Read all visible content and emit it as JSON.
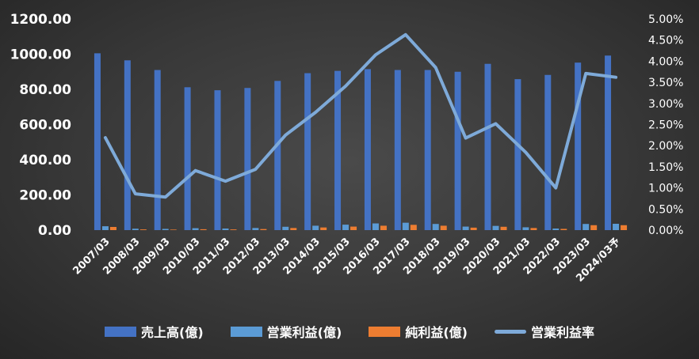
{
  "chart_data": {
    "type": "bar",
    "categories": [
      "2007/03",
      "2008/03",
      "2009/03",
      "2010/03",
      "2011/03",
      "2012/03",
      "2013/03",
      "2014/03",
      "2015/03",
      "2016/03",
      "2017/03",
      "2018/03",
      "2019/03",
      "2020/03",
      "2021/03",
      "2022/03",
      "2023/03",
      "2024/03予"
    ],
    "series": [
      {
        "name": "売上高(億)",
        "type": "bar",
        "axis": "left",
        "color": "#4472c4",
        "values": [
          1005,
          965,
          910,
          812,
          795,
          808,
          848,
          892,
          905,
          915,
          910,
          910,
          900,
          945,
          858,
          882,
          952,
          992
        ]
      },
      {
        "name": "営業利益(億)",
        "type": "bar",
        "axis": "left",
        "color": "#5b9bd5",
        "values": [
          22,
          8,
          7,
          11,
          9,
          12,
          19,
          25,
          31,
          38,
          42,
          35,
          20,
          24,
          16,
          9,
          35,
          36
        ]
      },
      {
        "name": "純利益(億)",
        "type": "bar",
        "axis": "left",
        "color": "#ed7d31",
        "values": [
          18,
          4,
          3,
          5,
          4,
          6,
          12,
          15,
          20,
          25,
          30,
          25,
          14,
          19,
          12,
          7,
          28,
          28
        ]
      },
      {
        "name": "営業利益率",
        "type": "line",
        "axis": "right",
        "color": "#7eaad9",
        "values": [
          2.19,
          0.86,
          0.78,
          1.41,
          1.16,
          1.44,
          2.25,
          2.79,
          3.41,
          4.15,
          4.63,
          3.85,
          2.18,
          2.52,
          1.84,
          1.0,
          3.71,
          3.62
        ]
      }
    ],
    "y_left": {
      "ylim": [
        0,
        1200
      ],
      "ticks": [
        "0.00",
        "200.00",
        "400.00",
        "600.00",
        "800.00",
        "1000.00",
        "1200.00"
      ]
    },
    "y_right": {
      "ylim": [
        0,
        5
      ],
      "ticks": [
        "0.00%",
        "0.50%",
        "1.00%",
        "1.50%",
        "2.00%",
        "2.50%",
        "3.00%",
        "3.50%",
        "4.00%",
        "4.50%",
        "5.00%"
      ]
    },
    "grid": false,
    "legend_position": "bottom"
  }
}
